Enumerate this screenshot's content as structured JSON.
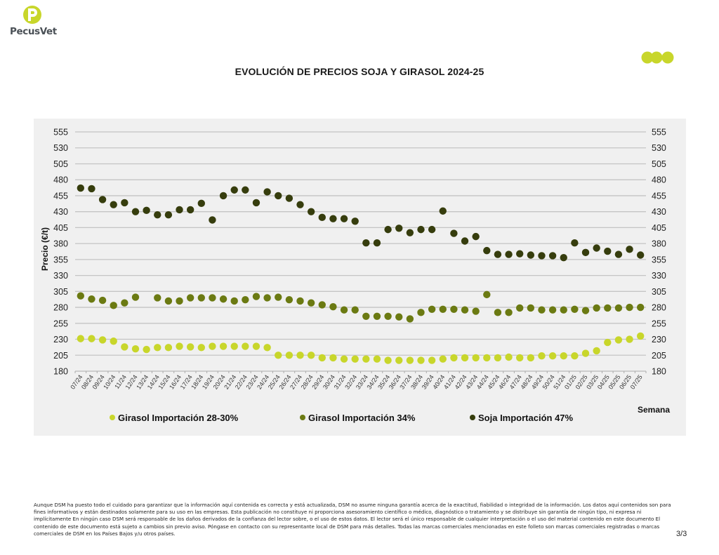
{
  "brand": {
    "logo_text": "PecusVet",
    "accent_color": "#c8d62b"
  },
  "page": {
    "number": "3/3"
  },
  "disclaimer": "Aunque DSM ha puesto todo el cuidado para garantizar que la información aquí contenida es correcta y está actualizada, DSM no asume ninguna garantía acerca de la exactitud, fiabilidad o integridad de la información. Los datos aquí contenidos son para fines informativos y están destinados solamente para su uso en las empresas. Esta publicación no constituye ni proporciona asesoramiento científico o médico, diagnóstico o tratamiento y se distribuye sin garantía de ningún tipo, ni expresa ni implícitamente En ningún caso DSM será responsable de los daños derivados de la confianza del lector sobre, o el uso de estos datos. El lector será el único responsable de cualquier interpretación o el uso del material contenido en este documento El contenido de este documento está sujeto a cambios sin previo aviso. Póngase en contacto con su representante local de DSM para más detalles. Todas las marcas comerciales mencionadas en este folleto son marcas comerciales registradas o marcas comerciales de DSM en los Países Bajos y/u otros países.",
  "chart_data": {
    "type": "scatter",
    "title": "EVOLUCIÓN DE PRECIOS SOJA Y GIRASOL 2024-25",
    "xlabel": "Semana",
    "ylabel": "Precio (€/t)",
    "ylim": [
      180,
      555
    ],
    "yticks": [
      180,
      205,
      230,
      255,
      280,
      305,
      330,
      355,
      380,
      405,
      430,
      455,
      480,
      505,
      530,
      555
    ],
    "grid": true,
    "secondary_y_axis": true,
    "legend_position": "bottom",
    "categories": [
      "07/24",
      "08/24",
      "09/24",
      "10/24",
      "11/24",
      "12/24",
      "13/24",
      "14/24",
      "15/24",
      "16/24",
      "17/24",
      "18/24",
      "19/24",
      "20/24",
      "21/24",
      "22/24",
      "23/24",
      "24/24",
      "25/24",
      "26/24",
      "27/24",
      "28/24",
      "29/24",
      "30/24",
      "31/24",
      "32/24",
      "33/24",
      "34/24",
      "35/24",
      "36/24",
      "37/24",
      "38/24",
      "39/24",
      "40/24",
      "41/24",
      "42/24",
      "43/24",
      "44/24",
      "45/24",
      "46/24",
      "47/24",
      "48/24",
      "49/24",
      "50/24",
      "51/24",
      "01/25",
      "02/25",
      "03/25",
      "04/25",
      "05/25",
      "06/25",
      "07/25"
    ],
    "series": [
      {
        "name": "Girasol Importación 28-30%",
        "color": "#c8d62b",
        "values": [
          231,
          231,
          229,
          227,
          218,
          215,
          214,
          217,
          217,
          219,
          218,
          217,
          219,
          219,
          219,
          219,
          219,
          217,
          205,
          205,
          205,
          205,
          201,
          201,
          199,
          199,
          199,
          199,
          197,
          197,
          197,
          197,
          197,
          199,
          201,
          201,
          201,
          201,
          201,
          202,
          201,
          201,
          204,
          204,
          204,
          204,
          208,
          212,
          225,
          229,
          230,
          235
        ]
      },
      {
        "name": "Girasol Importación 34%",
        "color": "#6b7a12",
        "values": [
          298,
          293,
          291,
          283,
          287,
          296,
          null,
          295,
          290,
          290,
          295,
          295,
          295,
          293,
          290,
          292,
          297,
          295,
          296,
          292,
          290,
          287,
          284,
          281,
          276,
          276,
          266,
          266,
          266,
          265,
          262,
          272,
          277,
          277,
          277,
          276,
          274,
          300,
          272,
          272,
          279,
          279,
          276,
          276,
          276,
          277,
          275,
          279,
          279,
          279,
          280,
          280
        ]
      },
      {
        "name": "Soja Importación 47%",
        "color": "#363d0d",
        "values": [
          467,
          466,
          449,
          441,
          444,
          430,
          432,
          425,
          425,
          433,
          433,
          443,
          417,
          455,
          464,
          464,
          444,
          461,
          455,
          451,
          441,
          430,
          421,
          419,
          419,
          415,
          381,
          381,
          402,
          404,
          397,
          402,
          402,
          431,
          396,
          384,
          391,
          369,
          363,
          363,
          364,
          362,
          361,
          361,
          358,
          381,
          366,
          373,
          368,
          363,
          371,
          362
        ]
      }
    ]
  }
}
